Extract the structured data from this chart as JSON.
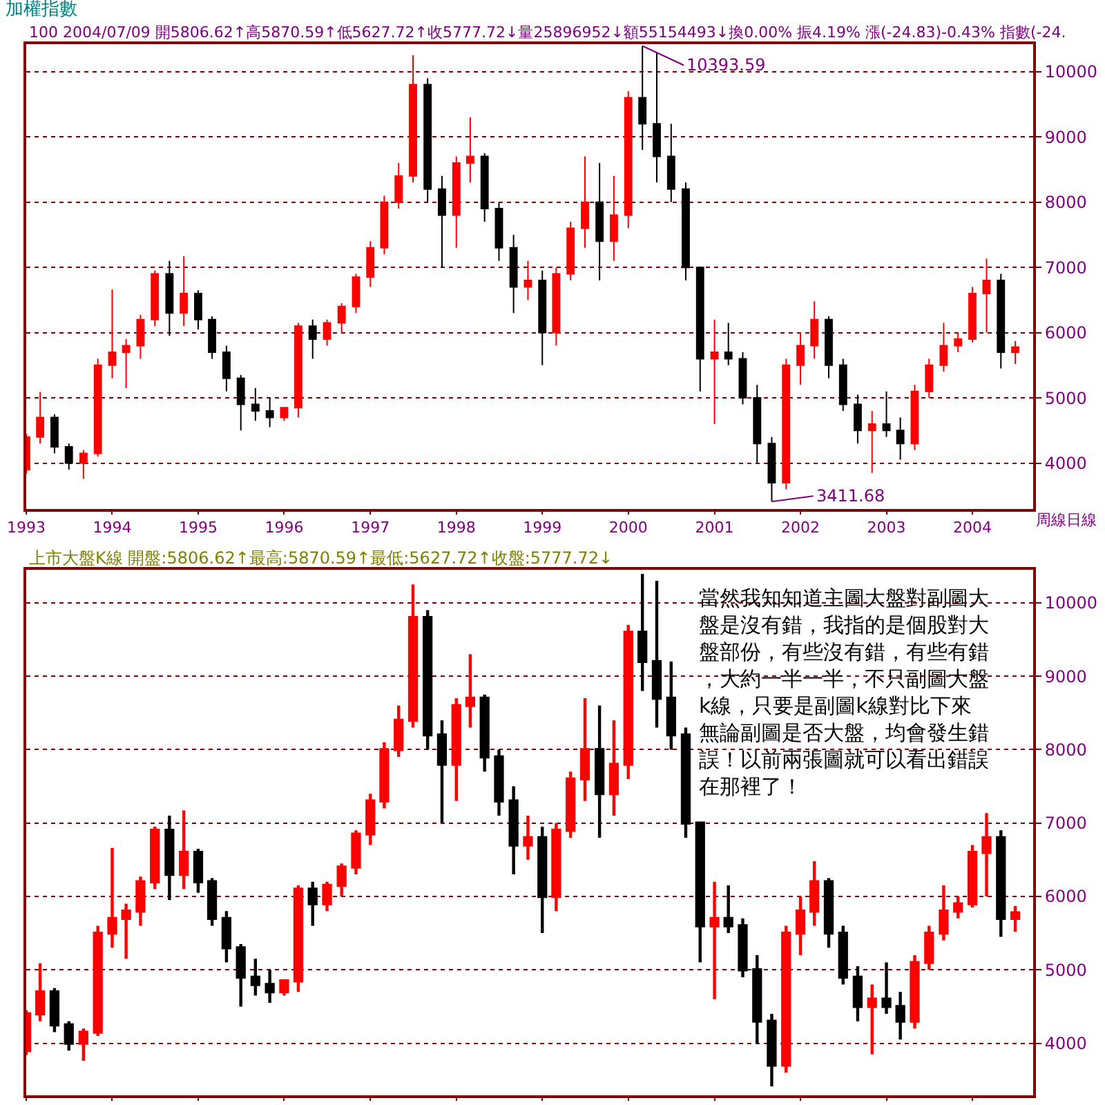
{
  "chart_data": [
    {
      "type": "candlestick",
      "title": "加權指數",
      "subtitle": "100 2004/07/09 開5806.62↑高5870.59↑低5627.72↑收5777.72↓量25896952↓額55154493↓換0.00% 振4.19% 漲(-24.83)-0.43% 指數(-24.",
      "colors": [
        "#ff0000",
        "#ff0000",
        "#000000",
        "#000000",
        "#ff0000",
        "#ff0000",
        "#ff0000",
        "#ff0000",
        "#ff0000",
        "#ff0000",
        "#000000",
        "#ff0000",
        "#000000",
        "#000000",
        "#000000",
        "#000000",
        "#000000",
        "#000000",
        "#ff0000",
        "#ff0000",
        "#000000",
        "#ff0000",
        "#ff0000",
        "#ff0000",
        "#ff0000",
        "#ff0000",
        "#ff0000",
        "#ff0000",
        "#000000",
        "#000000",
        "#ff0000",
        "#ff0000",
        "#000000",
        "#000000",
        "#000000",
        "#ff0000",
        "#000000",
        "#ff0000",
        "#ff0000",
        "#ff0000",
        "#000000",
        "#ff0000",
        "#ff0000",
        "#000000",
        "#000000",
        "#000000",
        "#000000",
        "#000000",
        "#ff0000",
        "#000000",
        "#000000",
        "#000000",
        "#000000",
        "#ff0000",
        "#ff0000",
        "#ff0000",
        "#000000",
        "#000000",
        "#000000",
        "#ff0000",
        "#000000",
        "#000000",
        "#ff0000",
        "#ff0000",
        "#ff0000",
        "#ff0000",
        "#ff0000",
        "#ff0000",
        "#000000",
        "#ff0000"
      ],
      "x": [
        "1993-01",
        "1993-03",
        "1993-05",
        "1993-07",
        "1993-09",
        "1993-11",
        "1994-01",
        "1994-03",
        "1994-05",
        "1994-07",
        "1994-09",
        "1994-11",
        "1995-01",
        "1995-03",
        "1995-05",
        "1995-07",
        "1995-09",
        "1995-11",
        "1996-01",
        "1996-03",
        "1996-05",
        "1996-07",
        "1996-09",
        "1996-11",
        "1997-01",
        "1997-03",
        "1997-05",
        "1997-07",
        "1997-09",
        "1997-11",
        "1998-01",
        "1998-03",
        "1998-05",
        "1998-07",
        "1998-09",
        "1998-11",
        "1999-01",
        "1999-03",
        "1999-05",
        "1999-07",
        "1999-09",
        "1999-11",
        "2000-01",
        "2000-03",
        "2000-05",
        "2000-07",
        "2000-09",
        "2000-11",
        "2001-01",
        "2001-03",
        "2001-05",
        "2001-07",
        "2001-09",
        "2001-11",
        "2002-01",
        "2002-03",
        "2002-05",
        "2002-07",
        "2002-09",
        "2002-11",
        "2003-01",
        "2003-03",
        "2003-05",
        "2003-07",
        "2003-09",
        "2003-11",
        "2004-01",
        "2004-03",
        "2004-05",
        "2004-07"
      ],
      "ohlc": [
        [
          3900,
          4450,
          3840,
          4400
        ],
        [
          4400,
          5090,
          4300,
          4700
        ],
        [
          4700,
          4750,
          4150,
          4250
        ],
        [
          4250,
          4300,
          3900,
          4000
        ],
        [
          4000,
          4200,
          3760,
          4150
        ],
        [
          4150,
          5600,
          4100,
          5500
        ],
        [
          5500,
          6660,
          5300,
          5700
        ],
        [
          5700,
          5900,
          5150,
          5800
        ],
        [
          5800,
          6270,
          5600,
          6200
        ],
        [
          6200,
          6950,
          6100,
          6900
        ],
        [
          6900,
          7100,
          5950,
          6300
        ],
        [
          6300,
          7170,
          6100,
          6600
        ],
        [
          6600,
          6650,
          6050,
          6200
        ],
        [
          6200,
          6250,
          5600,
          5700
        ],
        [
          5700,
          5800,
          5100,
          5300
        ],
        [
          5300,
          5350,
          4500,
          4900
        ],
        [
          4900,
          5150,
          4650,
          4800
        ],
        [
          4800,
          5000,
          4550,
          4700
        ],
        [
          4700,
          4850,
          4650,
          4850
        ],
        [
          4850,
          6150,
          4700,
          6100
        ],
        [
          6100,
          6200,
          5600,
          5900
        ],
        [
          5900,
          6200,
          5800,
          6150
        ],
        [
          6150,
          6450,
          6000,
          6400
        ],
        [
          6400,
          6900,
          6300,
          6850
        ],
        [
          6850,
          7400,
          6700,
          7300
        ],
        [
          7300,
          8100,
          7200,
          8000
        ],
        [
          8000,
          8600,
          7900,
          8400
        ],
        [
          8400,
          10250,
          8300,
          9800
        ],
        [
          9800,
          9900,
          8000,
          8200
        ],
        [
          8200,
          8400,
          7000,
          7800
        ],
        [
          7800,
          8700,
          7300,
          8600
        ],
        [
          8600,
          9300,
          8300,
          8700
        ],
        [
          8700,
          8750,
          7700,
          7900
        ],
        [
          7900,
          8000,
          7100,
          7300
        ],
        [
          7300,
          7500,
          6300,
          6700
        ],
        [
          6700,
          7100,
          6500,
          6800
        ],
        [
          6800,
          6950,
          5500,
          6000
        ],
        [
          6000,
          7000,
          5800,
          6900
        ],
        [
          6900,
          7700,
          6800,
          7600
        ],
        [
          7600,
          8700,
          7300,
          8000
        ],
        [
          8000,
          8600,
          6800,
          7400
        ],
        [
          7400,
          8400,
          7100,
          7800
        ],
        [
          7800,
          9700,
          7600,
          9600
        ],
        [
          9600,
          10393.59,
          8800,
          9200
        ],
        [
          9200,
          10300,
          8300,
          8700
        ],
        [
          8700,
          9200,
          8000,
          8200
        ],
        [
          8200,
          8300,
          6800,
          7000
        ],
        [
          7000,
          7000,
          5100,
          5600
        ],
        [
          5600,
          6200,
          4600,
          5700
        ],
        [
          5700,
          6150,
          5500,
          5600
        ],
        [
          5600,
          5700,
          4900,
          5000
        ],
        [
          5000,
          5200,
          4000,
          4300
        ],
        [
          4300,
          4400,
          3411.68,
          3700
        ],
        [
          3700,
          5600,
          3600,
          5500
        ],
        [
          5500,
          6000,
          5200,
          5800
        ],
        [
          5800,
          6480,
          5600,
          6200
        ],
        [
          6200,
          6250,
          5300,
          5500
        ],
        [
          5500,
          5600,
          4800,
          4900
        ],
        [
          4900,
          5050,
          4300,
          4500
        ],
        [
          4500,
          4800,
          3850,
          4600
        ],
        [
          4600,
          5100,
          4400,
          4500
        ],
        [
          4500,
          4700,
          4050,
          4300
        ],
        [
          4300,
          5200,
          4200,
          5100
        ],
        [
          5100,
          5600,
          5000,
          5500
        ],
        [
          5500,
          6150,
          5400,
          5800
        ],
        [
          5800,
          6000,
          5700,
          5900
        ],
        [
          5900,
          6700,
          5850,
          6600
        ],
        [
          6600,
          7135,
          6000,
          6800
        ],
        [
          6800,
          6900,
          5450,
          5700
        ],
        [
          5700,
          5870.59,
          5520,
          5777.72
        ]
      ],
      "xlim": [
        "1993-01-01",
        "2004-09-15"
      ],
      "xticks": [
        {
          "value": "1993",
          "label": "1993"
        },
        {
          "value": "1994",
          "label": "1994"
        },
        {
          "value": "1995",
          "label": "1995"
        },
        {
          "value": "1996",
          "label": "1996"
        },
        {
          "value": "1997",
          "label": "1997"
        },
        {
          "value": "1998",
          "label": "1998"
        },
        {
          "value": "1999",
          "label": "1999"
        },
        {
          "value": "2000",
          "label": "2000"
        },
        {
          "value": "2001",
          "label": "2001"
        },
        {
          "value": "2002",
          "label": "2002"
        },
        {
          "value": "2003",
          "label": "2003"
        },
        {
          "value": "2004",
          "label": "2004"
        }
      ],
      "ylim": [
        3300,
        10420
      ],
      "yticks": [
        4000,
        5000,
        6000,
        7000,
        8000,
        9000,
        10000
      ],
      "grid": "y",
      "annotations": [
        {
          "text": "10393.59",
          "x": "2000-03",
          "y": 10393.59
        },
        {
          "text": "3411.68",
          "x": "2001-09",
          "y": 3411.68
        },
        "周線日線"
      ]
    },
    {
      "type": "candlestick",
      "title": "上市大盤K線 開盤:5806.62↑最高:5870.59↑最低:5627.72↑收盤:5777.72↓",
      "colors": [
        "#ff0000",
        "#ff0000",
        "#000000",
        "#000000",
        "#ff0000",
        "#ff0000",
        "#ff0000",
        "#ff0000",
        "#ff0000",
        "#ff0000",
        "#000000",
        "#ff0000",
        "#000000",
        "#000000",
        "#000000",
        "#000000",
        "#000000",
        "#000000",
        "#ff0000",
        "#ff0000",
        "#000000",
        "#ff0000",
        "#ff0000",
        "#ff0000",
        "#ff0000",
        "#ff0000",
        "#ff0000",
        "#ff0000",
        "#000000",
        "#000000",
        "#ff0000",
        "#ff0000",
        "#000000",
        "#000000",
        "#000000",
        "#ff0000",
        "#000000",
        "#ff0000",
        "#ff0000",
        "#ff0000",
        "#000000",
        "#ff0000",
        "#ff0000",
        "#000000",
        "#000000",
        "#000000",
        "#000000",
        "#000000",
        "#ff0000",
        "#000000",
        "#000000",
        "#000000",
        "#000000",
        "#ff0000",
        "#ff0000",
        "#ff0000",
        "#000000",
        "#000000",
        "#000000",
        "#ff0000",
        "#000000",
        "#000000",
        "#ff0000",
        "#ff0000",
        "#ff0000",
        "#ff0000",
        "#ff0000",
        "#ff0000",
        "#000000",
        "#ff0000"
      ],
      "x": [
        "1993-01",
        "1993-03",
        "1993-05",
        "1993-07",
        "1993-09",
        "1993-11",
        "1994-01",
        "1994-03",
        "1994-05",
        "1994-07",
        "1994-09",
        "1994-11",
        "1995-01",
        "1995-03",
        "1995-05",
        "1995-07",
        "1995-09",
        "1995-11",
        "1996-01",
        "1996-03",
        "1996-05",
        "1996-07",
        "1996-09",
        "1996-11",
        "1997-01",
        "1997-03",
        "1997-05",
        "1997-07",
        "1997-09",
        "1997-11",
        "1998-01",
        "1998-03",
        "1998-05",
        "1998-07",
        "1998-09",
        "1998-11",
        "1999-01",
        "1999-03",
        "1999-05",
        "1999-07",
        "1999-09",
        "1999-11",
        "2000-01",
        "2000-03",
        "2000-05",
        "2000-07",
        "2000-09",
        "2000-11",
        "2001-01",
        "2001-03",
        "2001-05",
        "2001-07",
        "2001-09",
        "2001-11",
        "2002-01",
        "2002-03",
        "2002-05",
        "2002-07",
        "2002-09",
        "2002-11",
        "2003-01",
        "2003-03",
        "2003-05",
        "2003-07",
        "2003-09",
        "2003-11",
        "2004-01",
        "2004-03",
        "2004-05",
        "2004-07"
      ],
      "ohlc": [
        [
          3900,
          4450,
          3840,
          4400
        ],
        [
          4400,
          5090,
          4300,
          4700
        ],
        [
          4700,
          4750,
          4150,
          4250
        ],
        [
          4250,
          4300,
          3900,
          4000
        ],
        [
          4000,
          4200,
          3760,
          4150
        ],
        [
          4150,
          5600,
          4100,
          5500
        ],
        [
          5500,
          6660,
          5300,
          5700
        ],
        [
          5700,
          5900,
          5150,
          5800
        ],
        [
          5800,
          6270,
          5600,
          6200
        ],
        [
          6200,
          6950,
          6100,
          6900
        ],
        [
          6900,
          7100,
          5950,
          6300
        ],
        [
          6300,
          7170,
          6100,
          6600
        ],
        [
          6600,
          6650,
          6050,
          6200
        ],
        [
          6200,
          6250,
          5600,
          5700
        ],
        [
          5700,
          5800,
          5100,
          5300
        ],
        [
          5300,
          5350,
          4500,
          4900
        ],
        [
          4900,
          5150,
          4650,
          4800
        ],
        [
          4800,
          5000,
          4550,
          4700
        ],
        [
          4700,
          4850,
          4650,
          4850
        ],
        [
          4850,
          6150,
          4700,
          6100
        ],
        [
          6100,
          6200,
          5600,
          5900
        ],
        [
          5900,
          6200,
          5800,
          6150
        ],
        [
          6150,
          6450,
          6000,
          6400
        ],
        [
          6400,
          6900,
          6300,
          6850
        ],
        [
          6850,
          7400,
          6700,
          7300
        ],
        [
          7300,
          8100,
          7200,
          8000
        ],
        [
          8000,
          8600,
          7900,
          8400
        ],
        [
          8400,
          10250,
          8300,
          9800
        ],
        [
          9800,
          9900,
          8000,
          8200
        ],
        [
          8200,
          8400,
          7000,
          7800
        ],
        [
          7800,
          8700,
          7300,
          8600
        ],
        [
          8600,
          9300,
          8300,
          8700
        ],
        [
          8700,
          8750,
          7700,
          7900
        ],
        [
          7900,
          8000,
          7100,
          7300
        ],
        [
          7300,
          7500,
          6300,
          6700
        ],
        [
          6700,
          7100,
          6500,
          6800
        ],
        [
          6800,
          6950,
          5500,
          6000
        ],
        [
          6000,
          7000,
          5800,
          6900
        ],
        [
          6900,
          7700,
          6800,
          7600
        ],
        [
          7600,
          8700,
          7300,
          8000
        ],
        [
          8000,
          8600,
          6800,
          7400
        ],
        [
          7400,
          8400,
          7100,
          7800
        ],
        [
          7800,
          9700,
          7600,
          9600
        ],
        [
          9600,
          10393.59,
          8800,
          9200
        ],
        [
          9200,
          10300,
          8300,
          8700
        ],
        [
          8700,
          9200,
          8000,
          8200
        ],
        [
          8200,
          8300,
          6800,
          7000
        ],
        [
          7000,
          7000,
          5100,
          5600
        ],
        [
          5600,
          6200,
          4600,
          5700
        ],
        [
          5700,
          6150,
          5500,
          5600
        ],
        [
          5600,
          5700,
          4900,
          5000
        ],
        [
          5000,
          5200,
          4000,
          4300
        ],
        [
          4300,
          4400,
          3411.68,
          3700
        ],
        [
          3700,
          5600,
          3600,
          5500
        ],
        [
          5500,
          6000,
          5200,
          5800
        ],
        [
          5800,
          6480,
          5600,
          6200
        ],
        [
          6200,
          6250,
          5300,
          5500
        ],
        [
          5500,
          5600,
          4800,
          4900
        ],
        [
          4900,
          5050,
          4300,
          4500
        ],
        [
          4500,
          4800,
          3850,
          4600
        ],
        [
          4600,
          5100,
          4400,
          4500
        ],
        [
          4500,
          4700,
          4050,
          4300
        ],
        [
          4300,
          5200,
          4200,
          5100
        ],
        [
          5100,
          5600,
          5000,
          5500
        ],
        [
          5500,
          6150,
          5400,
          5800
        ],
        [
          5800,
          6000,
          5700,
          5900
        ],
        [
          5900,
          6700,
          5850,
          6600
        ],
        [
          6600,
          7135,
          6000,
          6800
        ],
        [
          6800,
          6900,
          5450,
          5700
        ],
        [
          5700,
          5870.59,
          5520,
          5777.72
        ]
      ],
      "xlim": [
        "1993-01-01",
        "2004-09-15"
      ],
      "xticks": [
        {
          "value": "1993",
          "label": null
        },
        {
          "value": "1994",
          "label": null
        },
        {
          "value": "1995",
          "label": null
        },
        {
          "value": "1996",
          "label": null
        },
        {
          "value": "1997",
          "label": null
        },
        {
          "value": "1998",
          "label": null
        },
        {
          "value": "1999",
          "label": null
        },
        {
          "value": "2000",
          "label": null
        },
        {
          "value": "2001",
          "label": null
        },
        {
          "value": "2002",
          "label": null
        },
        {
          "value": "2003",
          "label": null
        },
        {
          "value": "2004",
          "label": null
        }
      ],
      "ylim": [
        3290,
        10450
      ],
      "yticks": [
        4000,
        5000,
        6000,
        7000,
        8000,
        9000,
        10000
      ],
      "grid": "y",
      "tick_labels": "y",
      "annotations": [
        "當然我知知道主圖大盤對副圖大盤是沒有錯，我指的是個股對大盤部份，有些沒有錯，有些有錯，大約一半一半，不只副圖大盤k線，只要是副圖k線對比下來無論副圖是否大盤，均會發生錯誤！以前兩張圖就可以看出錯誤在那裡了！"
      ]
    }
  ]
}
